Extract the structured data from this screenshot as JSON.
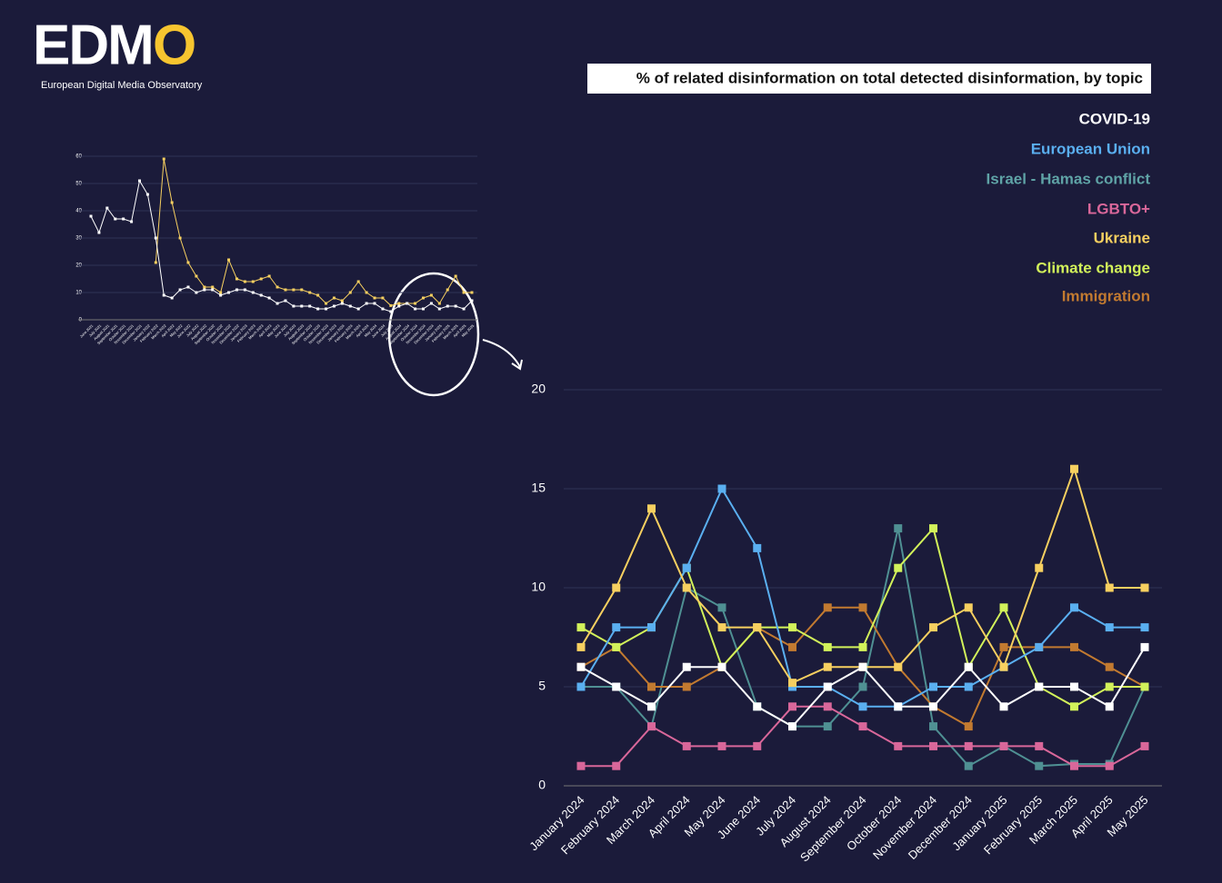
{
  "logo": {
    "letters": "EDM",
    "accent": "O",
    "subtitle": "European Digital Media Observatory"
  },
  "chart_data": [
    {
      "type": "line",
      "title": "% of related disinformation on total detected disinformation, by topic",
      "categories": [
        "January 2024",
        "February 2024",
        "March 2024",
        "April 2024",
        "May 2024",
        "June 2024",
        "July 2024",
        "August 2024",
        "September 2024",
        "October 2024",
        "November 2024",
        "December 2024",
        "January 2025",
        "February 2025",
        "March 2025",
        "April 2025",
        "May 2025"
      ],
      "ylim": [
        0,
        20
      ],
      "yticks": [
        0,
        5,
        10,
        15,
        20
      ],
      "grid": true,
      "legend": "top-right",
      "series": [
        {
          "name": "Israel - Hamas conflict",
          "color": "#4f9093",
          "values": [
            5,
            5,
            3,
            10,
            9,
            4,
            3,
            3,
            5,
            13,
            3,
            1,
            2,
            1,
            1.1,
            1.1,
            5
          ]
        },
        {
          "name": "LGBTO+",
          "color": "#d9679a",
          "values": [
            1,
            1,
            3,
            2,
            2,
            2,
            4,
            4,
            3,
            2,
            2,
            2,
            2,
            2,
            1,
            1,
            2
          ]
        },
        {
          "name": "Immigration",
          "color": "#c27a30",
          "values": [
            6,
            7,
            5,
            5,
            6,
            8,
            7,
            9,
            9,
            6,
            4,
            3,
            7,
            7,
            7,
            6,
            5
          ]
        },
        {
          "name": "Climate change",
          "color": "#d2f25a",
          "values": [
            8,
            7,
            8,
            11,
            6,
            8,
            8,
            7,
            7,
            11,
            13,
            6,
            9,
            5,
            4,
            5,
            5
          ]
        },
        {
          "name": "European Union",
          "color": "#5aaff0",
          "values": [
            5,
            8,
            8,
            11,
            15,
            12,
            5,
            5,
            4,
            4,
            5,
            5,
            6,
            7,
            9,
            8,
            8
          ]
        },
        {
          "name": "Ukraine",
          "color": "#f7d060",
          "values": [
            7,
            10,
            14,
            10,
            8,
            8,
            5.2,
            6,
            6,
            6,
            8,
            9,
            6,
            11,
            16,
            10,
            10
          ]
        },
        {
          "name": "COVID-19",
          "color": "#ffffff",
          "values": [
            6,
            5,
            4,
            6,
            6,
            4,
            3,
            5,
            6,
            4,
            4,
            6,
            4,
            5,
            5,
            4,
            7
          ]
        }
      ]
    },
    {
      "type": "line",
      "categories": [
        "June 2021",
        "July 2021",
        "August 2021",
        "September 2021",
        "October 2021",
        "November 2021",
        "December 2021",
        "January 2022",
        "February 2022",
        "March 2022",
        "April 2022",
        "May 2022",
        "June 2022",
        "July 2022",
        "August 2022",
        "September 2022",
        "October 2022",
        "November 2022",
        "December 2022",
        "January 2023",
        "February 2023",
        "March 2023",
        "April 2023",
        "May 2023",
        "June 2023",
        "July 2023",
        "August 2023",
        "September 2023",
        "October 2023",
        "November 2023",
        "December 2023",
        "January 2024",
        "February 2024",
        "March 2024",
        "April 2024",
        "May 2024",
        "June 2024",
        "July 2024",
        "August 2024",
        "September 2024",
        "October 2024",
        "November 2024",
        "December 2024",
        "January 2025",
        "February 2025",
        "March 2025",
        "April 2025",
        "May 2025"
      ],
      "ylim": [
        0,
        60
      ],
      "yticks": [
        0,
        10,
        20,
        30,
        40,
        50,
        60
      ],
      "grid": true,
      "series": [
        {
          "color": "#f7d060",
          "values": [
            null,
            null,
            null,
            null,
            null,
            null,
            null,
            null,
            21,
            59,
            43,
            30,
            21,
            16,
            12,
            12,
            10,
            22,
            15,
            14,
            14,
            15,
            16,
            12,
            11,
            11,
            11,
            10,
            9,
            6,
            8,
            7,
            10,
            14,
            10,
            8,
            8,
            5.2,
            6,
            6,
            6,
            8,
            9,
            6,
            11,
            16,
            10,
            10
          ]
        },
        {
          "color": "#ffffff",
          "values": [
            38,
            32,
            41,
            37,
            37,
            36,
            51,
            46,
            30,
            9,
            8,
            11,
            12,
            10,
            11,
            11,
            9,
            10,
            11,
            11,
            10,
            9,
            8,
            6,
            7,
            5,
            5,
            5,
            4,
            4,
            5,
            6,
            5,
            4,
            6,
            6,
            4,
            3,
            5,
            6,
            4,
            4,
            6,
            4,
            5,
            5,
            4,
            7
          ]
        }
      ]
    }
  ]
}
